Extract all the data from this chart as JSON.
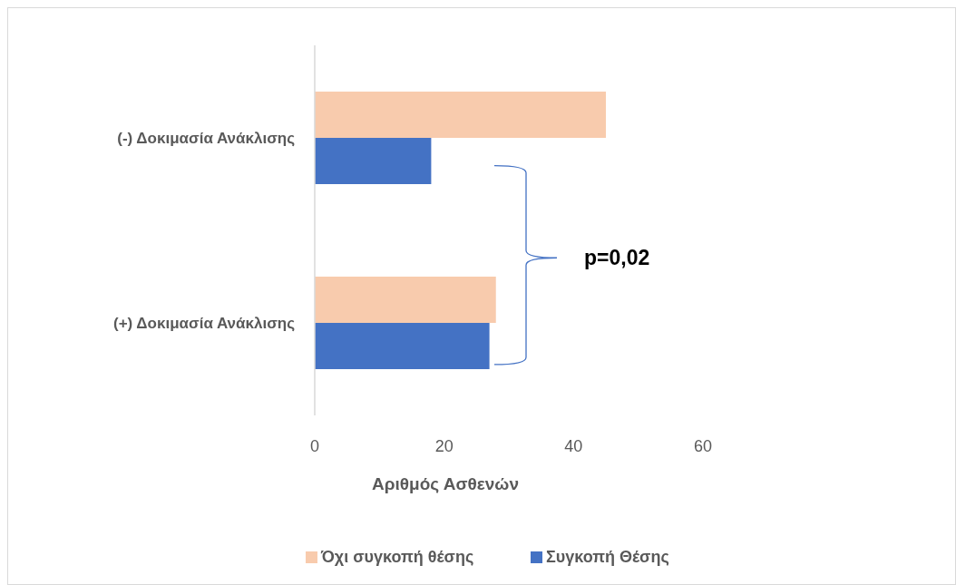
{
  "chart_data": {
    "type": "bar",
    "orientation": "horizontal",
    "categories": [
      "(-) Δοκιμασία Ανάκλισης",
      "(+) Δοκιμασία Ανάκλισης"
    ],
    "series": [
      {
        "name": "Όχι συγκοπή θέσης",
        "color": "#f8cbad",
        "values": [
          45,
          28
        ]
      },
      {
        "name": "Συγκοπή Θέσης",
        "color": "#4472c4",
        "values": [
          18,
          27
        ]
      }
    ],
    "xlabel": "Αριθμός Ασθενών",
    "xlim": [
      0,
      60
    ],
    "xticks": [
      0,
      20,
      40,
      60
    ],
    "grid": false,
    "legend": "bottom",
    "annotations": [
      "p=0,02"
    ]
  }
}
